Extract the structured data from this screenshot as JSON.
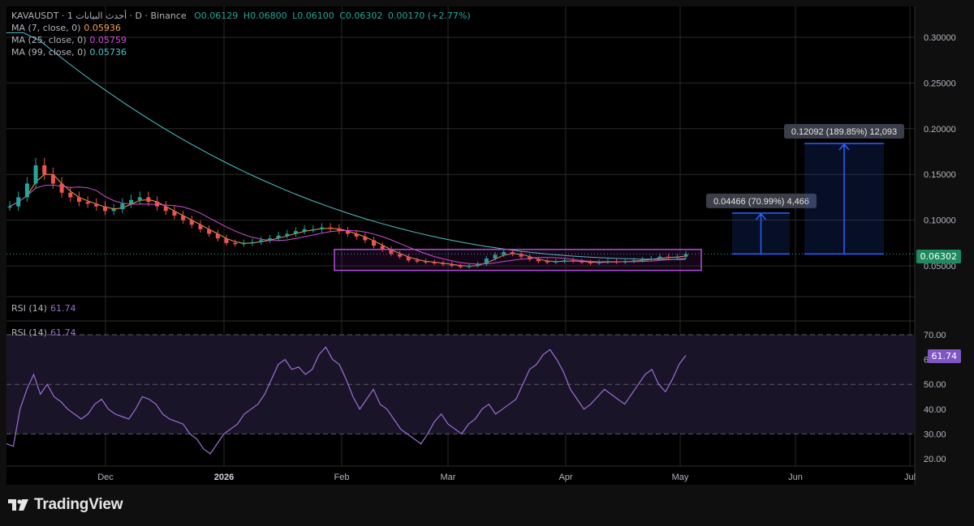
{
  "header": {
    "symbol": "KAVAUSDT",
    "title_prefix": "KAVAUSDT · 1",
    "title_suffix": "أحدث البيانات · D · Binance",
    "open_label": "O",
    "open": "0.06129",
    "high_label": "H",
    "high": "0.06800",
    "low_label": "L",
    "low": "0.06100",
    "close_label": "C",
    "close": "0.06302",
    "change": "0.00170 (+2.77%)"
  },
  "indicators": [
    {
      "label": "MA (7, close, 0)",
      "value": "0.05936",
      "color": "#f0a24a"
    },
    {
      "label": "MA (25, close, 0)",
      "value": "0.05759",
      "color": "#d04fd6"
    },
    {
      "label": "MA (99, close, 0)",
      "value": "0.05736",
      "color": "#4fc3c6"
    }
  ],
  "price_axis": {
    "ticks": [
      "0.30000",
      "0.25000",
      "0.20000",
      "0.15000",
      "0.10000",
      "0.05000"
    ],
    "tick_values": [
      0.3,
      0.25,
      0.2,
      0.15,
      0.1,
      0.05
    ],
    "current": "0.06302"
  },
  "rsi": {
    "label": "RSI (14)",
    "value": "61.74",
    "ticks": [
      "70.00",
      "60.00",
      "50.00",
      "40.00",
      "30.00",
      "20.00"
    ],
    "tick_values": [
      70,
      60,
      50,
      40,
      30,
      20
    ],
    "upper": 70,
    "lower": 30,
    "color": "#9c6fd6"
  },
  "time_axis": {
    "labels": [
      "Dec",
      "2026",
      "Feb",
      "Mar",
      "Apr",
      "May",
      "Jun",
      "Jul"
    ]
  },
  "annotations": {
    "target1": "0.04466 (70.99%) 4,466",
    "target2": "0.12092 (189.85%) 12,093"
  },
  "footer": {
    "brand": "TradingView"
  },
  "chart_data": {
    "type": "candlestick",
    "series": [
      {
        "name": "KAVAUSDT",
        "close_approx": [
          0.115,
          0.125,
          0.14,
          0.16,
          0.15,
          0.14,
          0.13,
          0.125,
          0.12,
          0.118,
          0.115,
          0.11,
          0.112,
          0.118,
          0.122,
          0.125,
          0.12,
          0.115,
          0.11,
          0.105,
          0.1,
          0.095,
          0.09,
          0.085,
          0.08,
          0.075,
          0.074,
          0.075,
          0.076,
          0.078,
          0.08,
          0.083,
          0.085,
          0.088,
          0.09,
          0.09,
          0.092,
          0.091,
          0.088,
          0.085,
          0.082,
          0.078,
          0.072,
          0.068,
          0.063,
          0.06,
          0.056,
          0.055,
          0.054,
          0.053,
          0.052,
          0.05,
          0.049,
          0.05,
          0.052,
          0.058,
          0.062,
          0.065,
          0.063,
          0.06,
          0.057,
          0.055,
          0.054,
          0.055,
          0.056,
          0.055,
          0.054,
          0.053,
          0.054,
          0.055,
          0.054,
          0.055,
          0.056,
          0.057,
          0.058,
          0.06,
          0.059,
          0.06,
          0.063
        ]
      }
    ],
    "ma7_last": 0.05936,
    "ma25_last": 0.05759,
    "ma99_last": 0.05736,
    "range_box": {
      "x_start": "Feb",
      "x_end": "May",
      "low": 0.045,
      "high": 0.068
    },
    "ylim": [
      0.03,
      0.32
    ]
  }
}
